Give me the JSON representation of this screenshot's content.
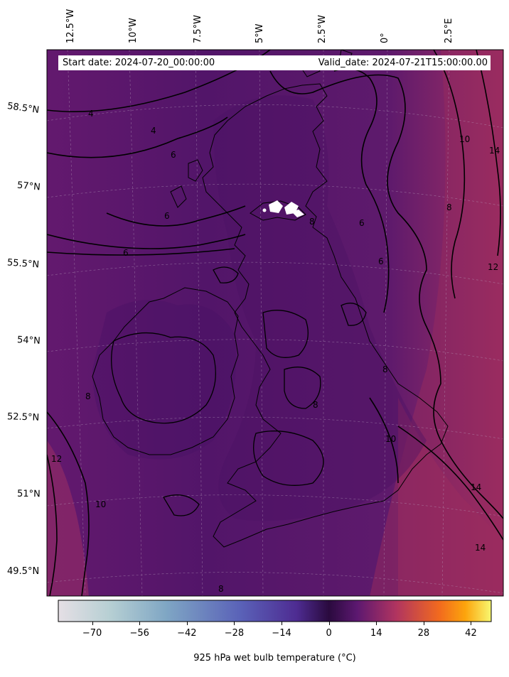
{
  "header": {
    "start_date": "Start date: 2024-07-20_00:00:00",
    "valid_date": "Valid_date: 2024-07-21T15:00:00.00"
  },
  "map": {
    "longitude_labels": [
      "12.5°W",
      "10°W",
      "7.5°W",
      "5°W",
      "2.5°W",
      "0°",
      "2.5°E"
    ],
    "latitude_labels": [
      "58.5°N",
      "57°N",
      "55.5°N",
      "54°N",
      "52.5°N",
      "51°N",
      "49.5°N"
    ],
    "contour_labels": [
      "4",
      "4",
      "6",
      "6",
      "6",
      "8",
      "8",
      "8",
      "10",
      "10",
      "12",
      "12",
      "14",
      "14",
      "8",
      "6",
      "6",
      "8",
      "10",
      "14",
      "8"
    ],
    "colors": {
      "background": "#5a1670",
      "dark": "#3e0a5c",
      "warm": "#a42d64",
      "contour": "#000000"
    }
  },
  "colorbar": {
    "title": "925 hPa wet bulb temperature (°C)",
    "ticks": [
      "−70",
      "−56",
      "−42",
      "−28",
      "−14",
      "0",
      "14",
      "28",
      "42"
    ],
    "range": [
      -80,
      48
    ],
    "colormap": [
      "#e5dfe5",
      "#b6cfd3",
      "#7fa6c4",
      "#5a62b8",
      "#4e2c92",
      "#2a0a3e",
      "#5c1870",
      "#b03460",
      "#f26a1e",
      "#fca40c",
      "#f8f870"
    ]
  }
}
